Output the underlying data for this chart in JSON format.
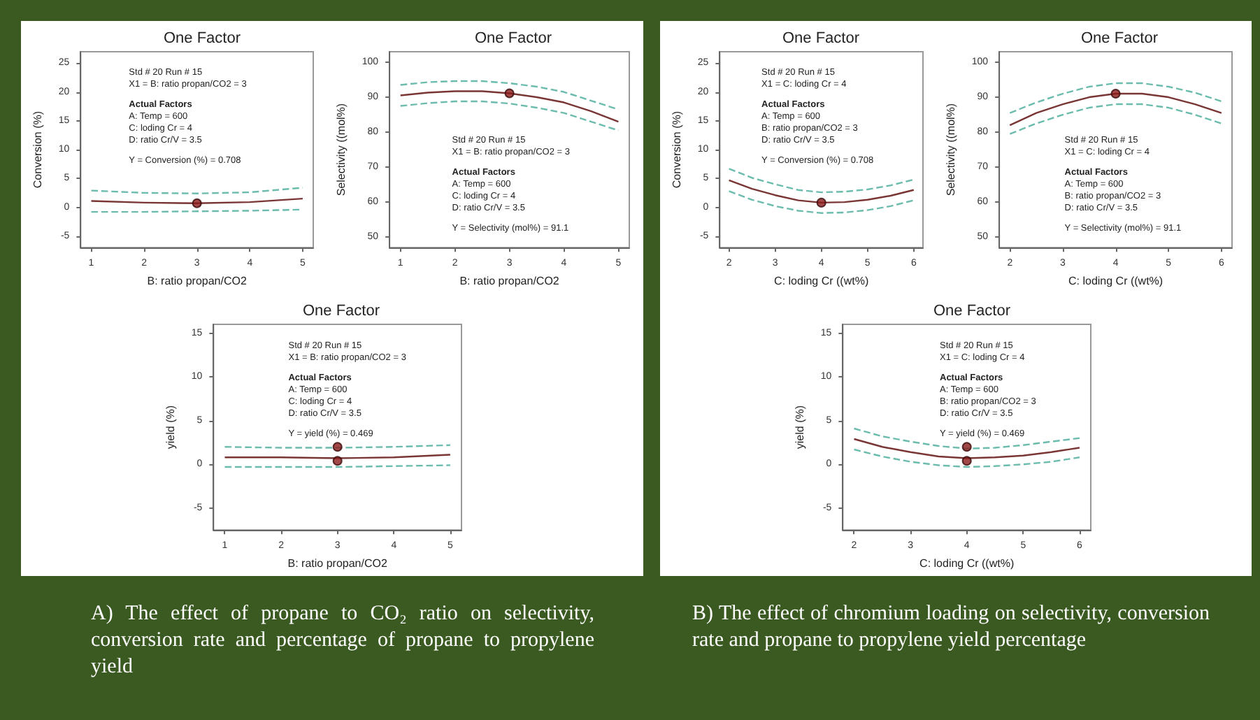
{
  "chart_data": [
    {
      "type": "line",
      "title": "One Factor",
      "xlabel": "B: ratio propan/CO2",
      "ylabel": "Conversion (%)",
      "xlim": [
        0.8,
        5.2
      ],
      "xticks": [
        1,
        2,
        3,
        4,
        5
      ],
      "ylim": [
        -7,
        27
      ],
      "yticks": [
        -5,
        0,
        5,
        10,
        15,
        20,
        25
      ],
      "grid": false,
      "annotations": [
        "Std # 20 Run # 15",
        "X1 = B: ratio propan/CO2 = 3",
        "Actual Factors",
        "A: Temp = 600",
        "C: loding Cr = 4",
        "D: ratio Cr/V = 3.5",
        "Y = Conversion (%) = 0.708"
      ],
      "series": [
        {
          "color": "#7a3535",
          "x": [
            1,
            2,
            3,
            4,
            5
          ],
          "values": [
            1.1,
            0.8,
            0.7,
            0.9,
            1.5
          ]
        },
        {
          "color": "#6cbcae",
          "line_style": "dashed",
          "x": [
            1,
            2,
            3,
            4,
            5
          ],
          "values": [
            2.9,
            2.5,
            2.4,
            2.6,
            3.4
          ]
        },
        {
          "color": "#6cbcae",
          "line_style": "dashed",
          "x": [
            1,
            2,
            3,
            4,
            5
          ],
          "values": [
            -0.8,
            -0.8,
            -0.7,
            -0.6,
            -0.4
          ]
        },
        {
          "type": "scatter",
          "marker": "circle",
          "color": "#8b1a1a",
          "x": [
            3
          ],
          "values": [
            0.7
          ]
        }
      ]
    },
    {
      "type": "line",
      "title": "One Factor",
      "xlabel": "B: ratio propan/CO2",
      "ylabel": "Selectivity ((mol%)",
      "xlim": [
        0.8,
        5.2
      ],
      "xticks": [
        1,
        2,
        3,
        4,
        5
      ],
      "ylim": [
        47,
        103
      ],
      "yticks": [
        50,
        60,
        70,
        80,
        90,
        100
      ],
      "grid": false,
      "annotations": [
        "Std # 20 Run # 15",
        "X1 = B: ratio propan/CO2 = 3",
        "Actual Factors",
        "A: Temp = 600",
        "C: loding Cr = 4",
        "D: ratio Cr/V = 3.5",
        "Y = Selectivity (mol%) = 91.1"
      ],
      "series": [
        {
          "color": "#7a3535",
          "x": [
            1,
            1.5,
            2,
            2.5,
            3,
            3.5,
            4,
            4.5,
            5
          ],
          "values": [
            90.5,
            91.3,
            91.7,
            91.7,
            91.1,
            90,
            88.5,
            86,
            83
          ]
        },
        {
          "color": "#6cbcae",
          "line_style": "dashed",
          "x": [
            1,
            1.5,
            2,
            2.5,
            3,
            3.5,
            4,
            4.5,
            5
          ],
          "values": [
            93.5,
            94.3,
            94.6,
            94.6,
            94,
            93,
            91.5,
            89,
            86.5
          ]
        },
        {
          "color": "#6cbcae",
          "line_style": "dashed",
          "x": [
            1,
            1.5,
            2,
            2.5,
            3,
            3.5,
            4,
            4.5,
            5
          ],
          "values": [
            87.5,
            88.3,
            88.8,
            88.8,
            88.2,
            87,
            85.5,
            83,
            80.5
          ]
        },
        {
          "type": "scatter",
          "marker": "circle",
          "color": "#8b1a1a",
          "x": [
            3
          ],
          "values": [
            91.1
          ]
        }
      ]
    },
    {
      "type": "line",
      "title": "One Factor",
      "xlabel": "B: ratio propan/CO2",
      "ylabel": "yield (%)",
      "xlim": [
        0.8,
        5.2
      ],
      "xticks": [
        1,
        2,
        3,
        4,
        5
      ],
      "ylim": [
        -7.5,
        16
      ],
      "yticks": [
        -5,
        0,
        5,
        10,
        15
      ],
      "grid": false,
      "annotations": [
        "Std # 20 Run # 15",
        "X1 = B: ratio propan/CO2 = 3",
        "Actual Factors",
        "A: Temp = 600",
        "C: loding Cr = 4",
        "D: ratio Cr/V = 3.5",
        "Y = yield (%) = 0.469"
      ],
      "series": [
        {
          "color": "#7a3535",
          "x": [
            1,
            2,
            3,
            4,
            5
          ],
          "values": [
            0.8,
            0.8,
            0.7,
            0.8,
            1.1
          ]
        },
        {
          "color": "#6cbcae",
          "line_style": "dashed",
          "x": [
            1,
            2,
            3,
            4,
            5
          ],
          "values": [
            2.0,
            1.9,
            1.9,
            2.0,
            2.2
          ]
        },
        {
          "color": "#6cbcae",
          "line_style": "dashed",
          "x": [
            1,
            2,
            3,
            4,
            5
          ],
          "values": [
            -0.3,
            -0.3,
            -0.3,
            -0.2,
            -0.1
          ]
        },
        {
          "type": "scatter",
          "marker": "circle",
          "color": "#8b1a1a",
          "x": [
            3,
            3
          ],
          "values": [
            2.0,
            0.4
          ]
        }
      ]
    },
    {
      "type": "line",
      "title": "One Factor",
      "xlabel": "C: loding Cr ((wt%)",
      "ylabel": "Conversion (%)",
      "xlim": [
        1.8,
        6.2
      ],
      "xticks": [
        2,
        3,
        4,
        5,
        6
      ],
      "ylim": [
        -7,
        27
      ],
      "yticks": [
        -5,
        0,
        5,
        10,
        15,
        20,
        25
      ],
      "grid": false,
      "annotations": [
        "Std # 20 Run # 15",
        "X1 = C: loding Cr = 4",
        "Actual Factors",
        "A: Temp = 600",
        "B: ratio propan/CO2 = 3",
        "D: ratio Cr/V = 3.5",
        "Y = Conversion (%) = 0.708"
      ],
      "series": [
        {
          "color": "#7a3535",
          "x": [
            2,
            2.5,
            3,
            3.5,
            4,
            4.5,
            5,
            5.5,
            6
          ],
          "values": [
            4.7,
            3.2,
            2.1,
            1.2,
            0.8,
            0.9,
            1.3,
            2.0,
            3.0
          ]
        },
        {
          "color": "#6cbcae",
          "line_style": "dashed",
          "x": [
            2,
            2.5,
            3,
            3.5,
            4,
            4.5,
            5,
            5.5,
            6
          ],
          "values": [
            6.7,
            5.1,
            4.0,
            3.0,
            2.6,
            2.7,
            3.1,
            3.8,
            4.8
          ]
        },
        {
          "color": "#6cbcae",
          "line_style": "dashed",
          "x": [
            2,
            2.5,
            3,
            3.5,
            4,
            4.5,
            5,
            5.5,
            6
          ],
          "values": [
            2.8,
            1.3,
            0.2,
            -0.6,
            -1.0,
            -0.9,
            -0.5,
            0.2,
            1.2
          ]
        },
        {
          "type": "scatter",
          "marker": "circle",
          "color": "#8b1a1a",
          "x": [
            4
          ],
          "values": [
            0.8
          ]
        }
      ]
    },
    {
      "type": "line",
      "title": "One Factor",
      "xlabel": "C: loding Cr ((wt%)",
      "ylabel": "Selectivity ((mol%)",
      "xlim": [
        1.8,
        6.2
      ],
      "xticks": [
        2,
        3,
        4,
        5,
        6
      ],
      "ylim": [
        47,
        103
      ],
      "yticks": [
        50,
        60,
        70,
        80,
        90,
        100
      ],
      "grid": false,
      "annotations": [
        "Std # 20 Run # 15",
        "X1 = C: loding Cr = 4",
        "Actual Factors",
        "A: Temp = 600",
        "B: ratio propan/CO2 = 3",
        "D: ratio Cr/V = 3.5",
        "Y = Selectivity (mol%) = 91.1"
      ],
      "series": [
        {
          "color": "#7a3535",
          "x": [
            2,
            2.5,
            3,
            3.5,
            4,
            4.5,
            5,
            5.5,
            6
          ],
          "values": [
            82,
            85.5,
            88,
            90,
            91,
            91,
            90,
            88,
            85.5
          ]
        },
        {
          "color": "#6cbcae",
          "line_style": "dashed",
          "x": [
            2,
            2.5,
            3,
            3.5,
            4,
            4.5,
            5,
            5.5,
            6
          ],
          "values": [
            85.5,
            88.5,
            91,
            93,
            94,
            94,
            93,
            91.3,
            88.8
          ]
        },
        {
          "color": "#6cbcae",
          "line_style": "dashed",
          "x": [
            2,
            2.5,
            3,
            3.5,
            4,
            4.5,
            5,
            5.5,
            6
          ],
          "values": [
            79.5,
            82.5,
            85,
            87,
            88,
            88,
            87,
            85,
            82.5
          ]
        },
        {
          "type": "scatter",
          "marker": "circle",
          "color": "#8b1a1a",
          "x": [
            4
          ],
          "values": [
            91
          ]
        }
      ]
    },
    {
      "type": "line",
      "title": "One Factor",
      "xlabel": "C: loding Cr ((wt%)",
      "ylabel": "yield (%)",
      "xlim": [
        1.8,
        6.2
      ],
      "xticks": [
        2,
        3,
        4,
        5,
        6
      ],
      "ylim": [
        -7.5,
        16
      ],
      "yticks": [
        -5,
        0,
        5,
        10,
        15
      ],
      "grid": false,
      "annotations": [
        "Std # 20 Run # 15",
        "X1 = C: loding Cr = 4",
        "Actual Factors",
        "A: Temp = 600",
        "B: ratio propan/CO2 = 3",
        "D: ratio Cr/V = 3.5",
        "Y = yield (%) = 0.469"
      ],
      "series": [
        {
          "color": "#7a3535",
          "x": [
            2,
            2.5,
            3,
            3.5,
            4,
            4.5,
            5,
            5.5,
            6
          ],
          "values": [
            2.9,
            2.0,
            1.4,
            0.9,
            0.7,
            0.8,
            1.0,
            1.4,
            1.9
          ]
        },
        {
          "color": "#6cbcae",
          "line_style": "dashed",
          "x": [
            2,
            2.5,
            3,
            3.5,
            4,
            4.5,
            5,
            5.5,
            6
          ],
          "values": [
            4.1,
            3.2,
            2.6,
            2.1,
            1.8,
            1.9,
            2.2,
            2.6,
            3.0
          ]
        },
        {
          "color": "#6cbcae",
          "line_style": "dashed",
          "x": [
            2,
            2.5,
            3,
            3.5,
            4,
            4.5,
            5,
            5.5,
            6
          ],
          "values": [
            1.7,
            0.9,
            0.3,
            -0.1,
            -0.3,
            -0.2,
            0.0,
            0.3,
            0.8
          ]
        },
        {
          "type": "scatter",
          "marker": "circle",
          "color": "#8b1a1a",
          "x": [
            4,
            4
          ],
          "values": [
            2.0,
            0.4
          ]
        }
      ]
    },
    {
      "type": "other",
      "annotations": [
        "A) The effect of propane to CO₂ ratio on selectivity, conversion rate and percentage of propane to propylene yield"
      ]
    },
    {
      "type": "other",
      "annotations": [
        "B) The effect of chromium loading on selectivity, conversion rate and propane to propylene yield percentage"
      ]
    }
  ]
}
